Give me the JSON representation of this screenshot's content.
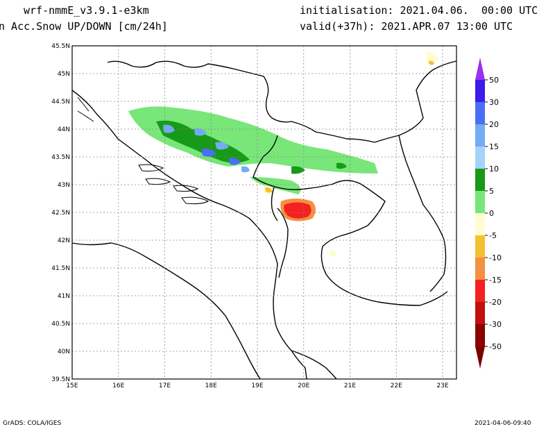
{
  "header": {
    "model": "wrf-nmmE_v3.9.1-e3km",
    "variable": "n Acc.Snow UP/DOWN [cm/24h]",
    "init": "initialisation: 2021.04.06.  00:00 UTC",
    "valid": "valid(+37h): 2021.APR.07 13:00 UTC"
  },
  "map": {
    "lon_range": [
      15,
      23.3
    ],
    "lat_range": [
      39.5,
      45.5
    ],
    "lat_ticks": [
      "45.5N",
      "45N",
      "44.5N",
      "44N",
      "43.5N",
      "43N",
      "42.5N",
      "42N",
      "41.5N",
      "41N",
      "40.5N",
      "40N",
      "39.5N"
    ],
    "lon_ticks": [
      "15E",
      "16E",
      "17E",
      "18E",
      "19E",
      "20E",
      "21E",
      "22E",
      "23E"
    ],
    "grid": true
  },
  "colorbar": {
    "labels": [
      "50",
      "30",
      "20",
      "15",
      "10",
      "5",
      "0",
      "-5",
      "-10",
      "-15",
      "-20",
      "-30",
      "-50"
    ],
    "colors": [
      "#3a1ee8",
      "#4c6df7",
      "#73abf5",
      "#a6d3f8",
      "#179a17",
      "#78e678",
      "#ffffff",
      "#fffcd2",
      "#f5c030",
      "#f59040",
      "#f52020",
      "#c01010",
      "#8c0000"
    ],
    "top_arrow_color": "#9b30f0",
    "bottom_arrow_color": "#7a0000"
  },
  "footer": {
    "left": "GrADS: COLA/IGES",
    "right": "2021-04-06-09:40"
  }
}
